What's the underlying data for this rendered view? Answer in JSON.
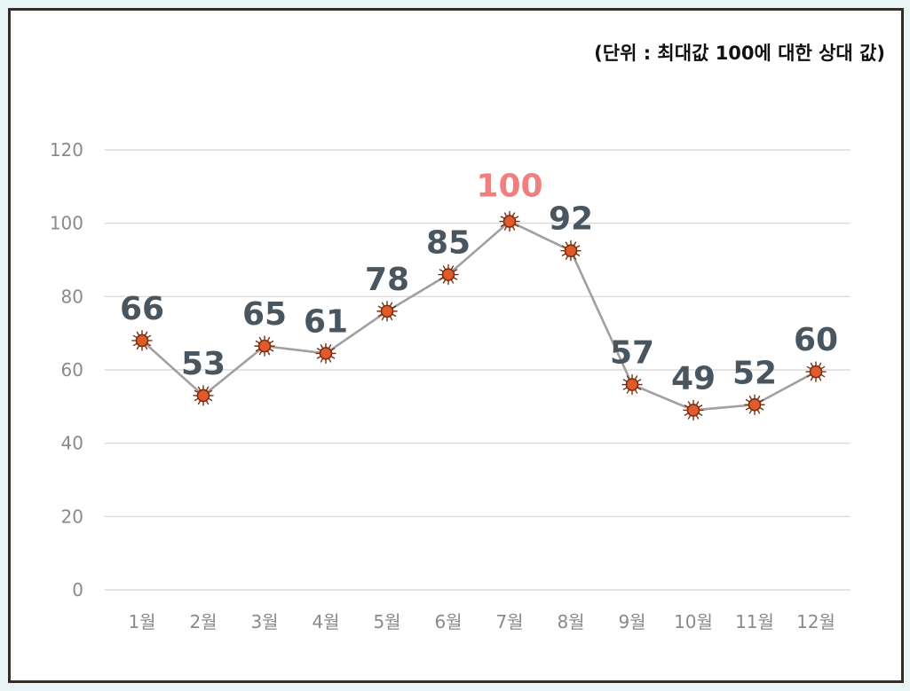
{
  "unit_note": "(단위 : 최대값 100에 대한 상대 값)",
  "colors": {
    "line": "#a0a0a0",
    "marker_fill": "#e05a2b",
    "marker_stroke": "#7a2e10",
    "label": "#4a565f",
    "peak_label": "#f08080",
    "grid": "#d4d4d4"
  },
  "chart_data": {
    "type": "line",
    "title": "",
    "xlabel": "",
    "ylabel": "",
    "categories": [
      "1월",
      "2월",
      "3월",
      "4월",
      "5월",
      "6월",
      "7월",
      "8월",
      "9월",
      "10월",
      "11월",
      "12월"
    ],
    "series": [
      {
        "values": [
          66,
          53,
          65,
          61,
          78,
          85,
          100,
          92,
          57,
          49,
          52,
          60
        ]
      }
    ],
    "point_positions": [
      68,
      53,
      66.5,
      64.5,
      76,
      86,
      100.5,
      92.5,
      56,
      49,
      50.5,
      59.5
    ],
    "ylim": [
      0,
      120
    ],
    "yticks": [
      0,
      20,
      40,
      60,
      80,
      100,
      120
    ],
    "grid": true,
    "legend": "none",
    "highlight_index": 6
  }
}
